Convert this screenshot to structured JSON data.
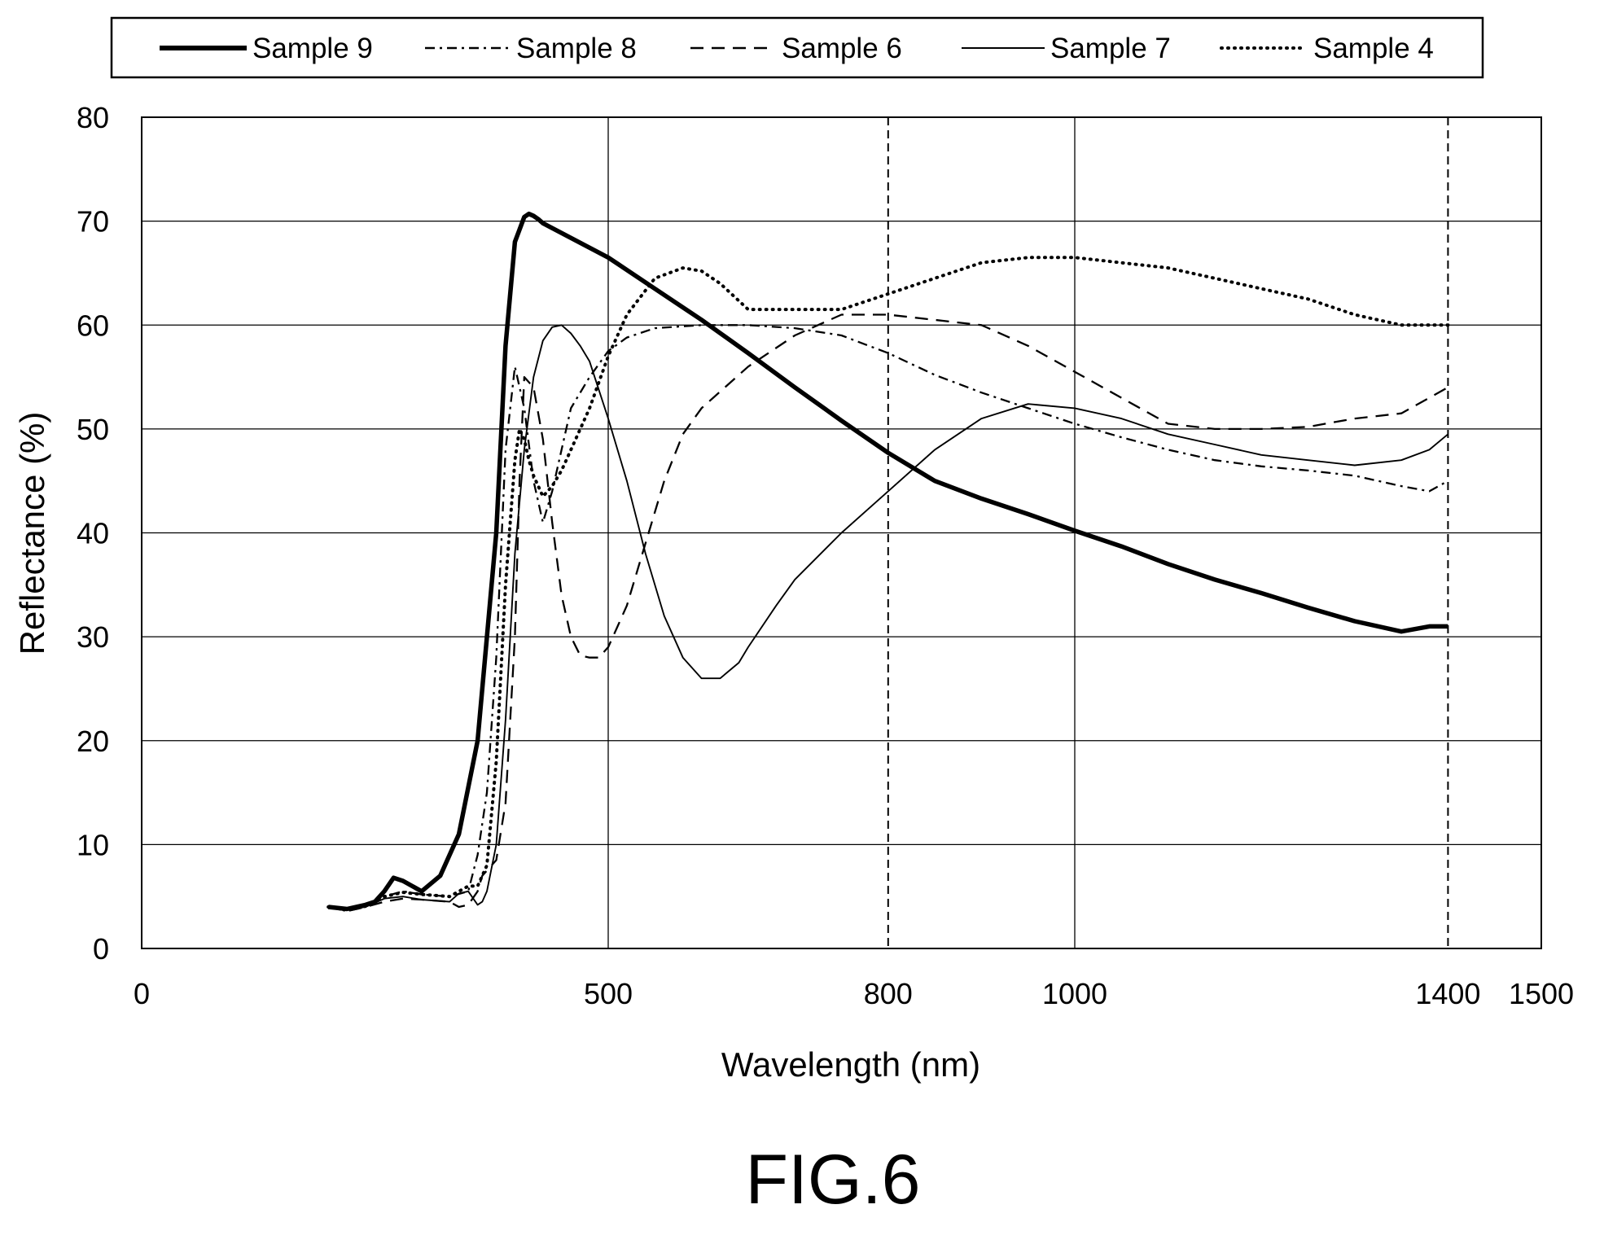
{
  "figure": {
    "caption": "FIG.6"
  },
  "chart_data": {
    "type": "line",
    "xlabel": "Wavelength (nm)",
    "ylabel": "Reflectance (%)",
    "xlim": [
      0,
      1500
    ],
    "ylim": [
      0,
      80
    ],
    "x_ticks": [
      0,
      500,
      800,
      1000,
      1400,
      1500
    ],
    "y_ticks": [
      0,
      10,
      20,
      30,
      40,
      50,
      60,
      70,
      80
    ],
    "grid": {
      "horizontal": "solid",
      "vertical_solid": [
        500,
        1000
      ],
      "vertical_dashed": [
        800,
        1400
      ]
    },
    "legend": {
      "position": "top"
    },
    "series": [
      {
        "name": "Sample 9",
        "style": "thick-solid",
        "x": [
          200,
          220,
          240,
          250,
          260,
          270,
          280,
          300,
          320,
          340,
          360,
          380,
          390,
          400,
          410,
          415,
          420,
          425,
          430,
          500,
          550,
          600,
          650,
          700,
          750,
          800,
          850,
          900,
          950,
          1000,
          1050,
          1100,
          1150,
          1200,
          1250,
          1300,
          1350,
          1380,
          1400
        ],
        "y": [
          4,
          3.8,
          4.2,
          4.5,
          5.5,
          6.8,
          6.5,
          5.5,
          7,
          11,
          20,
          40,
          58,
          68,
          70.4,
          70.7,
          70.5,
          70.2,
          69.8,
          66.5,
          63.5,
          60.5,
          57.3,
          54,
          50.8,
          47.7,
          45,
          43.3,
          41.8,
          40.2,
          38.7,
          37,
          35.5,
          34.2,
          32.8,
          31.5,
          30.5,
          31,
          31
        ]
      },
      {
        "name": "Sample 8",
        "style": "dash-dot",
        "x": [
          200,
          220,
          240,
          260,
          280,
          300,
          330,
          350,
          360,
          370,
          380,
          385,
          390,
          400,
          410,
          420,
          430,
          440,
          450,
          460,
          480,
          500,
          520,
          550,
          600,
          650,
          700,
          750,
          800,
          850,
          900,
          950,
          1000,
          1050,
          1100,
          1150,
          1200,
          1250,
          1300,
          1350,
          1380,
          1400
        ],
        "y": [
          4,
          3.6,
          4,
          5,
          5.5,
          5.2,
          5,
          5.5,
          9,
          15,
          28,
          38,
          48,
          56,
          52,
          45,
          41,
          44,
          48,
          52,
          55,
          57.5,
          58.8,
          59.7,
          60,
          60,
          59.7,
          59,
          57.3,
          55.2,
          53.5,
          52,
          50.5,
          49.2,
          48,
          47,
          46.4,
          46,
          45.5,
          44.5,
          44,
          45
        ]
      },
      {
        "name": "Sample 6",
        "style": "dashed",
        "x": [
          200,
          220,
          240,
          260,
          280,
          300,
          330,
          340,
          350,
          360,
          365,
          370,
          380,
          390,
          400,
          405,
          410,
          420,
          430,
          440,
          450,
          460,
          470,
          480,
          490,
          500,
          510,
          520,
          540,
          560,
          580,
          600,
          650,
          700,
          750,
          800,
          850,
          900,
          950,
          1000,
          1050,
          1100,
          1150,
          1200,
          1250,
          1300,
          1350,
          1400
        ],
        "y": [
          4,
          3.6,
          4,
          4.5,
          4.8,
          4.7,
          4.5,
          4,
          4.2,
          5.5,
          7,
          7.5,
          8.5,
          14,
          30,
          45,
          55,
          54,
          49,
          41,
          34,
          30,
          28.2,
          28,
          28,
          29,
          31,
          33,
          39,
          45,
          49.5,
          52,
          56,
          59,
          61,
          61,
          60.5,
          60,
          58,
          55.5,
          53,
          50.5,
          50,
          50,
          50.2,
          51,
          51.5,
          54
        ]
      },
      {
        "name": "Sample 7",
        "style": "thin-solid",
        "x": [
          200,
          220,
          240,
          260,
          280,
          300,
          330,
          340,
          350,
          360,
          365,
          370,
          380,
          390,
          400,
          410,
          420,
          430,
          440,
          450,
          460,
          470,
          480,
          500,
          520,
          540,
          560,
          580,
          600,
          620,
          640,
          650,
          680,
          700,
          750,
          800,
          850,
          900,
          950,
          1000,
          1050,
          1100,
          1150,
          1200,
          1250,
          1300,
          1350,
          1380,
          1400
        ],
        "y": [
          4,
          3.7,
          4,
          4.8,
          5,
          4.7,
          4.5,
          5.3,
          5.5,
          4.2,
          4.5,
          5.5,
          10,
          22,
          38,
          48,
          55,
          58.5,
          59.8,
          60,
          59.2,
          58,
          56.5,
          51,
          45,
          38,
          32,
          28,
          26,
          26,
          27.5,
          29,
          33,
          35.5,
          40,
          44,
          48,
          51,
          52.4,
          52,
          51,
          49.5,
          48.5,
          47.5,
          47,
          46.5,
          47,
          48,
          49.5
        ]
      },
      {
        "name": "Sample 4",
        "style": "dotted",
        "x": [
          200,
          220,
          240,
          260,
          280,
          300,
          330,
          340,
          350,
          360,
          370,
          380,
          390,
          400,
          405,
          410,
          415,
          420,
          430,
          440,
          450,
          460,
          480,
          500,
          520,
          550,
          580,
          600,
          620,
          650,
          700,
          750,
          800,
          850,
          900,
          950,
          1000,
          1050,
          1100,
          1150,
          1200,
          1250,
          1300,
          1350,
          1380,
          1400
        ],
        "y": [
          4,
          3.8,
          4.1,
          5,
          5.4,
          5.2,
          5,
          5.5,
          6,
          6,
          8,
          18,
          35,
          47,
          50,
          49,
          47,
          45.5,
          43.5,
          44.5,
          46,
          48,
          52,
          57,
          61,
          64.5,
          65.5,
          65.2,
          64,
          61.5,
          61.5,
          61.5,
          63,
          64.5,
          66,
          66.5,
          66.5,
          66,
          65.5,
          64.5,
          63.5,
          62.5,
          61,
          60,
          60,
          60
        ]
      }
    ]
  }
}
